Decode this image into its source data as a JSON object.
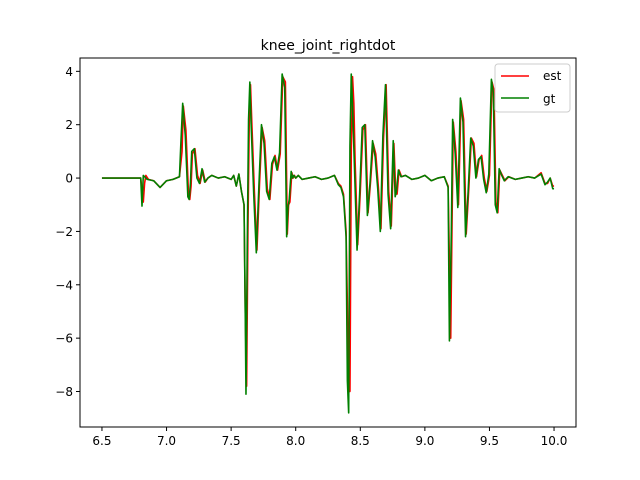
{
  "chart_data": {
    "type": "line",
    "title": "knee_joint_rightdot",
    "xlabel": "",
    "ylabel": "",
    "xlim": [
      6.33,
      10.17
    ],
    "ylim": [
      -9.33,
      4.5
    ],
    "xticks": [
      6.5,
      7.0,
      7.5,
      8.0,
      8.5,
      9.0,
      9.5,
      10.0
    ],
    "xtick_labels": [
      "6.5",
      "7.0",
      "7.5",
      "8.0",
      "8.5",
      "9.0",
      "9.5",
      "10.0"
    ],
    "yticks": [
      -8,
      -6,
      -4,
      -2,
      0,
      2,
      4
    ],
    "ytick_labels": [
      "−8",
      "−6",
      "−4",
      "−2",
      "0",
      "2",
      "4"
    ],
    "grid": false,
    "legend_position": "top-right",
    "series": [
      {
        "name": "est",
        "color": "#ff0000",
        "x": [
          6.5,
          6.7,
          6.8,
          6.82,
          6.83,
          6.84,
          6.86,
          6.9,
          6.95,
          7.0,
          7.05,
          7.1,
          7.12,
          7.13,
          7.15,
          7.17,
          7.18,
          7.19,
          7.2,
          7.22,
          7.24,
          7.26,
          7.28,
          7.3,
          7.32,
          7.35,
          7.4,
          7.45,
          7.5,
          7.52,
          7.54,
          7.56,
          7.58,
          7.6,
          7.61,
          7.62,
          7.63,
          7.64,
          7.65,
          7.66,
          7.68,
          7.7,
          7.72,
          7.74,
          7.76,
          7.78,
          7.8,
          7.82,
          7.84,
          7.86,
          7.88,
          7.9,
          7.92,
          7.935,
          7.945,
          7.955,
          7.97,
          7.98,
          7.99,
          8.0,
          8.02,
          8.05,
          8.1,
          8.15,
          8.2,
          8.25,
          8.3,
          8.33,
          8.35,
          8.37,
          8.39,
          8.41,
          8.42,
          8.43,
          8.44,
          8.45,
          8.46,
          8.48,
          8.5,
          8.52,
          8.54,
          8.56,
          8.58,
          8.6,
          8.62,
          8.64,
          8.66,
          8.68,
          8.7,
          8.72,
          8.74,
          8.76,
          8.775,
          8.785,
          8.8,
          8.82,
          8.85,
          8.9,
          8.95,
          9.0,
          9.05,
          9.1,
          9.15,
          9.18,
          9.2,
          9.21,
          9.22,
          9.24,
          9.26,
          9.28,
          9.3,
          9.32,
          9.34,
          9.36,
          9.38,
          9.4,
          9.42,
          9.44,
          9.46,
          9.48,
          9.5,
          9.52,
          9.535,
          9.55,
          9.565,
          9.58,
          9.6,
          9.62,
          9.65,
          9.7,
          9.75,
          9.8,
          9.85,
          9.9,
          9.93,
          9.95,
          9.97,
          9.99,
          10.0
        ],
        "y": [
          0,
          0,
          0,
          -0.9,
          -0.2,
          0.1,
          -0.05,
          -0.1,
          -0.35,
          -0.1,
          -0.05,
          0.05,
          1.0,
          2.7,
          1.8,
          -0.6,
          -0.8,
          -0.3,
          0.9,
          1.1,
          0.1,
          -0.2,
          0.3,
          -0.15,
          0.0,
          0.1,
          0.0,
          0.05,
          -0.05,
          0.1,
          -0.3,
          0.15,
          -0.5,
          -1.0,
          -5.2,
          -7.8,
          -2.0,
          2.0,
          3.5,
          2.1,
          -0.5,
          -2.7,
          -0.2,
          1.9,
          1.4,
          -0.4,
          -0.8,
          0.5,
          0.85,
          0.3,
          0.9,
          3.8,
          3.6,
          -2.1,
          -1.0,
          -0.9,
          0.2,
          0.0,
          0.1,
          0.0,
          0.1,
          -0.05,
          0.0,
          0.05,
          -0.05,
          0.0,
          0.1,
          -0.2,
          -0.3,
          -0.6,
          -2.0,
          -7.5,
          -8.0,
          1.0,
          3.8,
          2.8,
          0.6,
          -2.5,
          -0.5,
          1.8,
          2.0,
          -1.3,
          -0.1,
          1.3,
          0.9,
          -0.35,
          -1.9,
          1.5,
          3.5,
          -0.5,
          -1.8,
          1.3,
          -0.6,
          -0.6,
          0.3,
          0.05,
          0.1,
          -0.05,
          0.0,
          0.1,
          -0.1,
          0.0,
          0.05,
          -0.3,
          -6.0,
          -1.8,
          2.1,
          1.0,
          -1.0,
          2.9,
          2.2,
          -2.1,
          -0.4,
          1.5,
          1.3,
          0.05,
          0.7,
          0.85,
          0.0,
          -0.5,
          0.1,
          3.6,
          3.3,
          -0.9,
          -1.3,
          0.3,
          0.1,
          -0.1,
          0.05,
          -0.05,
          0.0,
          0.05,
          0.0,
          0.2,
          -0.2,
          -0.2,
          0.0,
          -0.3,
          -0.3
        ]
      },
      {
        "name": "gt",
        "color": "#008000",
        "x": [
          6.5,
          6.7,
          6.8,
          6.81,
          6.82,
          6.83,
          6.85,
          6.9,
          6.95,
          7.0,
          7.05,
          7.1,
          7.11,
          7.125,
          7.145,
          7.165,
          7.175,
          7.185,
          7.195,
          7.215,
          7.235,
          7.255,
          7.275,
          7.295,
          7.32,
          7.35,
          7.4,
          7.45,
          7.5,
          7.52,
          7.54,
          7.56,
          7.58,
          7.6,
          7.61,
          7.615,
          7.625,
          7.635,
          7.645,
          7.655,
          7.675,
          7.695,
          7.715,
          7.735,
          7.755,
          7.775,
          7.795,
          7.815,
          7.835,
          7.855,
          7.875,
          7.895,
          7.915,
          7.93,
          7.94,
          7.95,
          7.965,
          7.975,
          7.985,
          8.0,
          8.02,
          8.05,
          8.1,
          8.15,
          8.2,
          8.25,
          8.3,
          8.33,
          8.35,
          8.37,
          8.39,
          8.4,
          8.41,
          8.42,
          8.43,
          8.44,
          8.455,
          8.475,
          8.495,
          8.515,
          8.535,
          8.555,
          8.575,
          8.595,
          8.615,
          8.635,
          8.655,
          8.675,
          8.695,
          8.715,
          8.735,
          8.755,
          8.77,
          8.78,
          8.795,
          8.815,
          8.85,
          8.9,
          8.95,
          9.0,
          9.05,
          9.1,
          9.15,
          9.18,
          9.19,
          9.205,
          9.215,
          9.235,
          9.255,
          9.275,
          9.295,
          9.315,
          9.335,
          9.355,
          9.375,
          9.395,
          9.415,
          9.435,
          9.455,
          9.475,
          9.495,
          9.515,
          9.53,
          9.545,
          9.56,
          9.575,
          9.595,
          9.615,
          9.645,
          9.7,
          9.75,
          9.8,
          9.85,
          9.9,
          9.93,
          9.95,
          9.97,
          9.99,
          10.0
        ],
        "y": [
          0,
          0,
          0,
          -1.05,
          0.1,
          0.05,
          -0.05,
          -0.1,
          -0.35,
          -0.1,
          -0.05,
          0.05,
          1.2,
          2.8,
          1.6,
          -0.7,
          -0.8,
          -0.2,
          1.0,
          1.1,
          0.0,
          -0.2,
          0.35,
          -0.15,
          0.0,
          0.1,
          0.0,
          0.05,
          -0.05,
          0.1,
          -0.3,
          0.15,
          -0.5,
          -1.0,
          -5.4,
          -8.1,
          -2.5,
          2.2,
          3.6,
          2.0,
          -0.6,
          -2.8,
          -0.3,
          2.0,
          1.3,
          -0.5,
          -0.8,
          0.55,
          0.8,
          0.3,
          0.95,
          3.9,
          3.4,
          -2.2,
          -1.1,
          -0.8,
          0.25,
          0.0,
          0.1,
          0.0,
          0.1,
          -0.05,
          0.0,
          0.05,
          -0.05,
          0.0,
          0.1,
          -0.25,
          -0.35,
          -0.7,
          -2.2,
          -7.6,
          -8.8,
          1.2,
          3.9,
          2.7,
          0.4,
          -2.7,
          -0.6,
          1.9,
          2.0,
          -1.4,
          -0.2,
          1.4,
          0.8,
          -0.4,
          -2.0,
          1.6,
          3.5,
          -0.6,
          -1.9,
          1.4,
          -0.7,
          -0.5,
          0.3,
          0.05,
          0.1,
          -0.05,
          0.0,
          0.1,
          -0.1,
          0.0,
          0.05,
          -0.35,
          -6.1,
          -2.0,
          2.2,
          0.9,
          -1.1,
          3.0,
          2.1,
          -2.2,
          -0.5,
          1.5,
          1.2,
          0.0,
          0.7,
          0.8,
          -0.05,
          -0.55,
          0.15,
          3.7,
          3.2,
          -1.0,
          -1.3,
          0.35,
          0.1,
          -0.1,
          0.05,
          -0.05,
          0.0,
          0.05,
          0.0,
          0.15,
          -0.25,
          -0.15,
          0.0,
          -0.4,
          -0.4
        ]
      }
    ]
  }
}
